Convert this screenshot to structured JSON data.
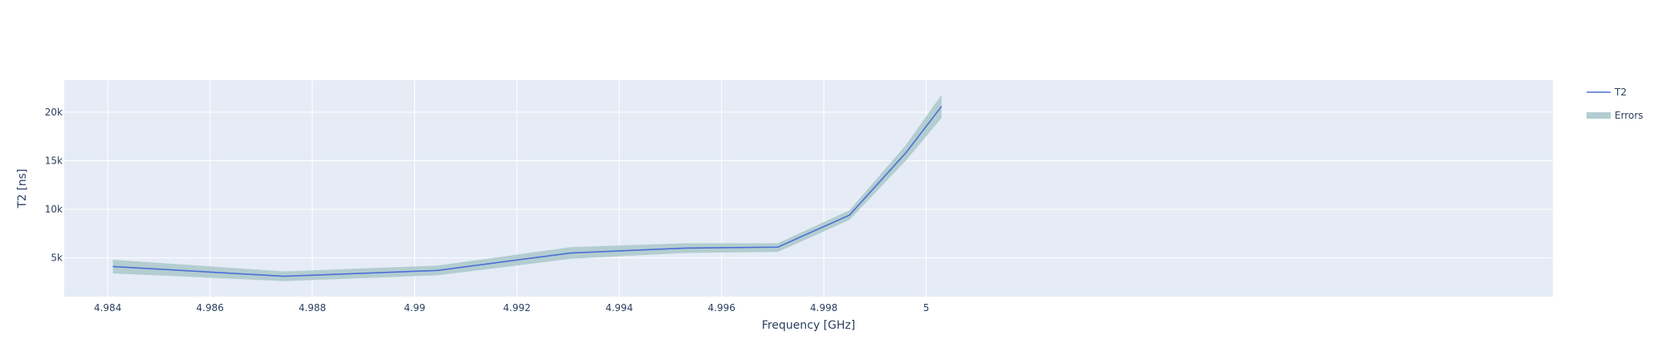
{
  "chart_data": {
    "type": "line",
    "xlabel": "Frequency [GHz]",
    "ylabel": "T2 [ns]",
    "xlim": [
      4.98315,
      5.01225
    ],
    "ylim": [
      1000,
      23300
    ],
    "x_ticks": [
      4.984,
      4.986,
      4.988,
      4.99,
      4.992,
      4.994,
      4.996,
      4.998,
      5
    ],
    "x_tick_labels": [
      "4.984",
      "4.986",
      "4.988",
      "4.99",
      "4.992",
      "4.994",
      "4.996",
      "4.998",
      "5"
    ],
    "y_ticks": [
      5000,
      10000,
      15000,
      20000
    ],
    "y_tick_labels": [
      "5k",
      "10k",
      "15k",
      "20k"
    ],
    "grid": true,
    "legend_placement": "top-right",
    "series": [
      {
        "name": "T2",
        "color": "#4a6fd6",
        "x": [
          4.9841,
          4.98745,
          4.99045,
          4.99305,
          4.9953,
          4.9971,
          4.9985,
          4.9996,
          5.0003
        ],
        "y": [
          4100,
          3100,
          3700,
          5500,
          6000,
          6100,
          9400,
          15800,
          20600
        ]
      },
      {
        "name": "Errors",
        "color": "#b3cdd0",
        "x": [
          4.9841,
          4.98745,
          4.99045,
          4.99305,
          4.9953,
          4.9971,
          4.9985,
          4.9996,
          5.0003
        ],
        "upper": [
          4800,
          3600,
          4200,
          6100,
          6500,
          6500,
          9900,
          16600,
          21800
        ],
        "lower": [
          3400,
          2600,
          3200,
          4900,
          5500,
          5600,
          8900,
          15000,
          19400
        ]
      }
    ],
    "colors": {
      "plot_background": "#e5ecf6",
      "grid": "#ffffff",
      "text": "#2a3f5f"
    }
  }
}
